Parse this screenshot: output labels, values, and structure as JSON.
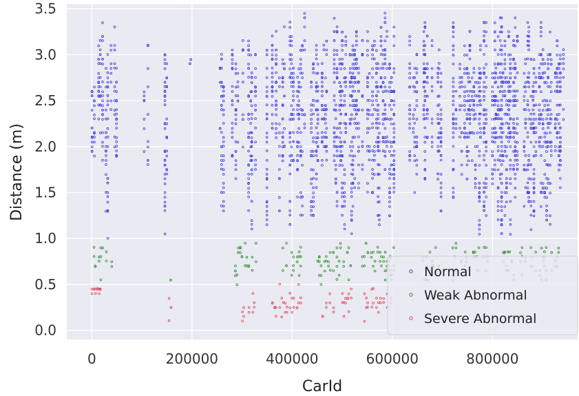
{
  "chart_data": {
    "type": "scatter",
    "title": "",
    "xlabel": "CarId",
    "ylabel": "Distance (m)",
    "xlim": [
      -50000,
      970000
    ],
    "ylim": [
      -0.1,
      3.55
    ],
    "x_ticks": [
      0,
      200000,
      400000,
      600000,
      800000
    ],
    "x_tick_labels": [
      "0",
      "200000",
      "400000",
      "600000",
      "800000"
    ],
    "y_ticks": [
      0.0,
      0.5,
      1.0,
      1.5,
      2.0,
      2.5,
      3.0,
      3.5
    ],
    "y_tick_labels": [
      "0.0",
      "0.5",
      "1.0",
      "1.5",
      "2.0",
      "2.5",
      "3.0",
      "3.5"
    ],
    "grid": true,
    "background": "#eaeaf2",
    "legend_position": "lower-right",
    "series": [
      {
        "name": "Normal",
        "color": "#3b3bdc",
        "y_range": [
          0.9,
          3.5
        ],
        "clusters": [
          {
            "x_start": 0,
            "x_end": 30000,
            "y_min": 0.95,
            "y_max": 3.5
          },
          {
            "x_start": 30000,
            "x_end": 55000,
            "y_min": 0.9,
            "y_max": 3.5
          },
          {
            "x_start": 90000,
            "x_end": 115000,
            "y_min": 1.25,
            "y_max": 3.45
          },
          {
            "x_start": 145000,
            "x_end": 160000,
            "y_min": 1.0,
            "y_max": 3.5
          },
          {
            "x_start": 195000,
            "x_end": 200000,
            "y_min": 2.8,
            "y_max": 3.0
          },
          {
            "x_start": 255000,
            "x_end": 330000,
            "y_min": 0.95,
            "y_max": 3.5
          },
          {
            "x_start": 345000,
            "x_end": 420000,
            "y_min": 0.9,
            "y_max": 3.5
          },
          {
            "x_start": 420000,
            "x_end": 500000,
            "y_min": 1.0,
            "y_max": 3.5
          },
          {
            "x_start": 500000,
            "x_end": 560000,
            "y_min": 1.0,
            "y_max": 3.5
          },
          {
            "x_start": 560000,
            "x_end": 605000,
            "y_min": 1.0,
            "y_max": 3.5
          },
          {
            "x_start": 630000,
            "x_end": 700000,
            "y_min": 1.0,
            "y_max": 3.5
          },
          {
            "x_start": 720000,
            "x_end": 800000,
            "y_min": 0.9,
            "y_max": 3.5
          },
          {
            "x_start": 800000,
            "x_end": 900000,
            "y_min": 0.9,
            "y_max": 3.5
          },
          {
            "x_start": 900000,
            "x_end": 945000,
            "y_min": 1.1,
            "y_max": 3.45
          }
        ]
      },
      {
        "name": "Weak Abnormal",
        "color": "#2e8b2e",
        "y_range": [
          0.5,
          1.0
        ],
        "clusters": [
          {
            "x_start": 0,
            "x_end": 45000,
            "y_min": 0.5,
            "y_max": 1.0
          },
          {
            "x_start": 145000,
            "x_end": 160000,
            "y_min": 0.5,
            "y_max": 0.75
          },
          {
            "x_start": 285000,
            "x_end": 330000,
            "y_min": 0.5,
            "y_max": 1.0
          },
          {
            "x_start": 380000,
            "x_end": 420000,
            "y_min": 0.5,
            "y_max": 1.0
          },
          {
            "x_start": 450000,
            "x_end": 520000,
            "y_min": 0.5,
            "y_max": 1.0
          },
          {
            "x_start": 540000,
            "x_end": 605000,
            "y_min": 0.5,
            "y_max": 1.0
          },
          {
            "x_start": 660000,
            "x_end": 700000,
            "y_min": 0.5,
            "y_max": 1.0
          },
          {
            "x_start": 720000,
            "x_end": 800000,
            "y_min": 0.5,
            "y_max": 1.0
          },
          {
            "x_start": 820000,
            "x_end": 935000,
            "y_min": 0.5,
            "y_max": 1.0
          }
        ]
      },
      {
        "name": "Severe Abnormal",
        "color": "#e0465a",
        "y_range": [
          0.0,
          0.5
        ],
        "clusters": [
          {
            "x_start": 0,
            "x_end": 20000,
            "y_min": 0.35,
            "y_max": 0.5
          },
          {
            "x_start": 150000,
            "x_end": 160000,
            "y_min": 0.0,
            "y_max": 0.5
          },
          {
            "x_start": 300000,
            "x_end": 330000,
            "y_min": 0.0,
            "y_max": 0.5
          },
          {
            "x_start": 360000,
            "x_end": 420000,
            "y_min": 0.05,
            "y_max": 0.5
          },
          {
            "x_start": 460000,
            "x_end": 520000,
            "y_min": 0.1,
            "y_max": 0.5
          },
          {
            "x_start": 540000,
            "x_end": 600000,
            "y_min": 0.0,
            "y_max": 0.5
          }
        ]
      }
    ]
  }
}
